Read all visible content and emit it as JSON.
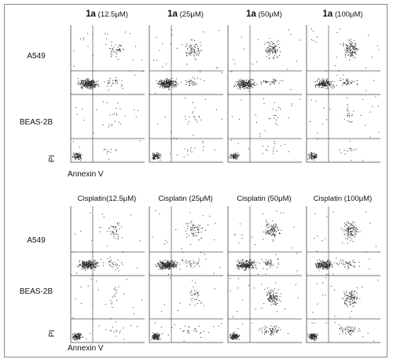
{
  "top_block": {
    "headers": [
      {
        "compound": "1a",
        "conc": "(12.5μM)"
      },
      {
        "compound": "1a",
        "conc": "(25μM)"
      },
      {
        "compound": "1a",
        "conc": "(50μM)"
      },
      {
        "compound": "1a",
        "conc": "(100μM)"
      }
    ],
    "rows": [
      "A549",
      "BEAS-2B"
    ],
    "axis_y": "PI",
    "axis_x": "Annexin V"
  },
  "bottom_block": {
    "headers": [
      "Cisplatin(12.5μM)",
      "Cisplatin (25μM)",
      "Cisplatin (50μM)",
      "Cisplatin (100μM)"
    ],
    "rows": [
      "A549",
      "BEAS-2B"
    ],
    "axis_y": "PI",
    "axis_x": "Annexin V"
  },
  "colors": {
    "dots": "#2a2a2a",
    "gates": "#555555",
    "frame": "#8a8a8a"
  }
}
